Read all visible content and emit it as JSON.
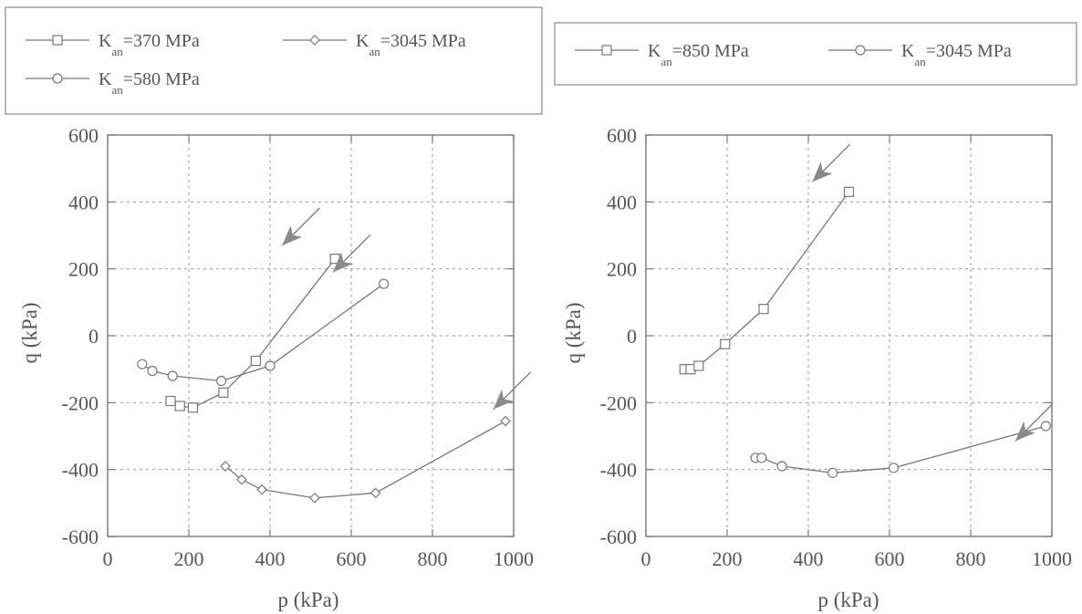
{
  "chart_data": [
    {
      "type": "line",
      "title": "",
      "xlabel": "p (kPa)",
      "ylabel": "q (kPa)",
      "xlim": [
        0,
        1000
      ],
      "ylim": [
        -600,
        600
      ],
      "xticks": [
        "0",
        "200",
        "400",
        "600",
        "800",
        "1000"
      ],
      "yticks": [
        "-600",
        "-400",
        "-200",
        "0",
        "200",
        "400",
        "600"
      ],
      "grid": true,
      "legend_position": "top-outside",
      "series": [
        {
          "name_prefix": "K",
          "name_sub": "an",
          "name_suffix": "=370 MPa",
          "marker": "square",
          "points": [
            [
              155,
              -195
            ],
            [
              178,
              -210
            ],
            [
              210,
              -215
            ],
            [
              285,
              -170
            ],
            [
              365,
              -75
            ],
            [
              560,
              230
            ]
          ]
        },
        {
          "name_prefix": "K",
          "name_sub": "an",
          "name_suffix": "=3045 MPa",
          "marker": "diamond",
          "points": [
            [
              290,
              -390
            ],
            [
              330,
              -430
            ],
            [
              380,
              -460
            ],
            [
              510,
              -485
            ],
            [
              660,
              -470
            ],
            [
              980,
              -255
            ]
          ]
        },
        {
          "name_prefix": "K",
          "name_sub": "an",
          "name_suffix": "=580 MPa",
          "marker": "circle",
          "points": [
            [
              85,
              -85
            ],
            [
              110,
              -105
            ],
            [
              160,
              -120
            ],
            [
              280,
              -135
            ],
            [
              400,
              -90
            ],
            [
              680,
              155
            ]
          ]
        }
      ],
      "arrows": [
        [
          430,
          270,
          95,
          -125
        ],
        [
          555,
          190,
          95,
          -100
        ],
        [
          950,
          -220,
          95,
          -85
        ]
      ]
    },
    {
      "type": "line",
      "title": "",
      "xlabel": "p (kPa)",
      "ylabel": "q (kPa)",
      "xlim": [
        0,
        1000
      ],
      "ylim": [
        -600,
        600
      ],
      "xticks": [
        "0",
        "200",
        "400",
        "600",
        "800",
        "1000"
      ],
      "yticks": [
        "-600",
        "-400",
        "-200",
        "0",
        "200",
        "400",
        "600"
      ],
      "grid": true,
      "legend_position": "top-outside",
      "series": [
        {
          "name_prefix": "K",
          "name_sub": "an",
          "name_suffix": "=850 MPa",
          "marker": "square",
          "points": [
            [
              95,
              -100
            ],
            [
              110,
              -100
            ],
            [
              130,
              -90
            ],
            [
              195,
              -25
            ],
            [
              290,
              80
            ],
            [
              500,
              430
            ]
          ]
        },
        {
          "name_prefix": "K",
          "name_sub": "an",
          "name_suffix": "=3045 MPa",
          "marker": "circle",
          "points": [
            [
              270,
              -365
            ],
            [
              285,
              -365
            ],
            [
              335,
              -390
            ],
            [
              460,
              -410
            ],
            [
              610,
              -395
            ],
            [
              985,
              -270
            ]
          ]
        }
      ],
      "arrows": [
        [
          410,
          460,
          70,
          -120
        ],
        [
          910,
          -315,
          70,
          -70
        ]
      ]
    }
  ]
}
